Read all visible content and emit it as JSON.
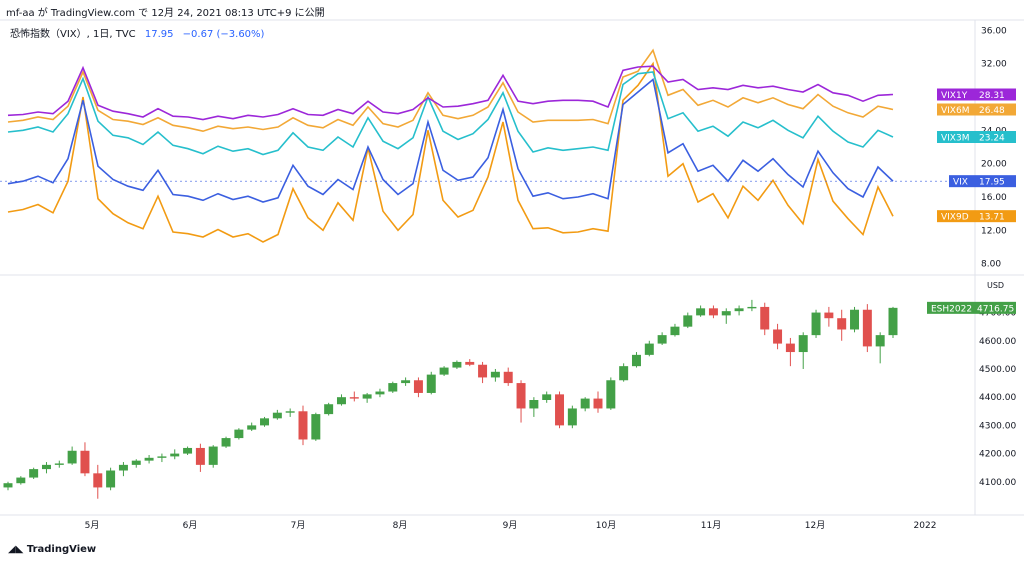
{
  "header": {
    "caption": "mf-aa が TradingView.com で 12月 24, 2021 08:13 UTC+9 に公開"
  },
  "legend": {
    "title": "恐怖指数（VIX）, 1日, TVC",
    "last": "17.95",
    "change": "−0.67 (−3.60%)"
  },
  "footer": {
    "logo": "TradingView"
  },
  "colors": {
    "VIX1Y": "#9c27d9",
    "VIX6M": "#f2a836",
    "VIX3M": "#26bfcc",
    "VIX": "#3b5fe0",
    "VIX9D": "#f29b13",
    "up": "#43a047",
    "down": "#e0504e"
  },
  "chart_data": [
    {
      "type": "line",
      "y_ticks": [
        "36.00",
        "32.00",
        "28.00",
        "24.00",
        "20.00",
        "16.00",
        "12.00",
        "8.00"
      ],
      "ylim": [
        7,
        37
      ],
      "x_labels": [
        "5月",
        "6月",
        "7月",
        "8月",
        "9月",
        "10月",
        "11月",
        "12月",
        "2022"
      ],
      "series": [
        {
          "name": "VIX1Y",
          "last": "28.31",
          "values": [
            25.8,
            25.9,
            26.2,
            26.0,
            27.5,
            31.5,
            27.0,
            26.3,
            26.0,
            25.6,
            26.6,
            25.7,
            25.6,
            25.3,
            25.7,
            25.4,
            25.8,
            25.6,
            25.9,
            26.6,
            25.9,
            25.8,
            26.5,
            26.0,
            27.5,
            26.2,
            26.0,
            26.5,
            27.9,
            26.8,
            26.9,
            27.2,
            27.6,
            30.6,
            27.5,
            27.2,
            27.5,
            27.6,
            27.6,
            27.5,
            26.8,
            31.2,
            31.6,
            31.7,
            29.8,
            30.1,
            28.9,
            29.1,
            28.9,
            29.4,
            29.1,
            29.3,
            28.9,
            28.6,
            29.5,
            28.5,
            28.2,
            27.5,
            28.2,
            28.3
          ]
        },
        {
          "name": "VIX6M",
          "last": "26.48",
          "values": [
            25.0,
            25.2,
            25.6,
            25.3,
            26.9,
            31.0,
            26.4,
            25.3,
            25.1,
            24.7,
            25.5,
            24.6,
            24.3,
            23.9,
            24.5,
            24.2,
            24.4,
            24.1,
            24.4,
            25.5,
            24.6,
            24.3,
            25.3,
            24.6,
            26.8,
            24.8,
            24.4,
            25.2,
            28.5,
            25.8,
            25.4,
            25.8,
            26.8,
            29.7,
            26.2,
            25.0,
            25.2,
            25.2,
            25.2,
            25.3,
            24.8,
            30.4,
            31.1,
            33.6,
            28.2,
            28.9,
            27.0,
            27.6,
            26.8,
            27.9,
            27.3,
            27.9,
            27.1,
            26.6,
            28.3,
            26.9,
            26.1,
            25.6,
            26.9,
            26.5
          ]
        },
        {
          "name": "VIX3M",
          "last": "23.24",
          "values": [
            23.8,
            24.0,
            24.4,
            23.8,
            26.0,
            30.2,
            25.1,
            23.4,
            23.1,
            22.3,
            23.8,
            22.2,
            21.8,
            21.2,
            22.1,
            21.5,
            21.8,
            21.1,
            21.6,
            23.7,
            22.0,
            21.6,
            23.2,
            22.0,
            25.5,
            22.7,
            21.8,
            23.1,
            28.0,
            23.9,
            22.9,
            23.6,
            25.3,
            28.5,
            23.9,
            21.4,
            21.9,
            21.6,
            21.8,
            22.0,
            21.6,
            29.5,
            30.8,
            31.0,
            25.4,
            26.1,
            23.9,
            24.5,
            23.3,
            25.0,
            24.3,
            25.2,
            24.0,
            23.1,
            25.7,
            23.9,
            22.6,
            22.0,
            24.0,
            23.2
          ]
        },
        {
          "name": "VIX",
          "last": "17.95",
          "values": [
            17.6,
            17.9,
            18.5,
            17.7,
            20.6,
            27.6,
            19.7,
            18.1,
            17.3,
            16.8,
            19.2,
            16.3,
            16.1,
            15.6,
            16.4,
            15.7,
            16.1,
            15.4,
            15.9,
            19.8,
            17.3,
            16.3,
            18.1,
            16.9,
            22.0,
            18.1,
            16.3,
            17.6,
            25.0,
            19.2,
            18.0,
            18.4,
            20.7,
            26.5,
            19.4,
            16.1,
            16.5,
            15.8,
            16.0,
            16.4,
            15.8,
            27.1,
            28.6,
            30.1,
            21.3,
            22.4,
            19.1,
            19.8,
            17.9,
            20.4,
            19.1,
            20.6,
            18.7,
            17.2,
            21.5,
            18.9,
            17.0,
            16.0,
            19.6,
            17.9
          ]
        },
        {
          "name": "VIX9D",
          "last": "13.71",
          "values": [
            14.2,
            14.5,
            15.1,
            14.1,
            17.9,
            28.0,
            15.8,
            14.0,
            12.9,
            12.2,
            16.1,
            11.8,
            11.6,
            11.2,
            12.1,
            11.2,
            11.6,
            10.6,
            11.5,
            17.0,
            13.5,
            12.0,
            15.3,
            13.2,
            21.9,
            14.3,
            12.0,
            13.9,
            24.0,
            15.6,
            13.6,
            14.4,
            18.4,
            25.0,
            15.6,
            12.2,
            12.3,
            11.7,
            11.8,
            12.2,
            11.9,
            27.6,
            29.4,
            32.0,
            18.5,
            20.0,
            15.4,
            16.4,
            13.5,
            17.3,
            15.6,
            18.0,
            15.0,
            12.8,
            20.5,
            15.5,
            13.4,
            11.5,
            17.2,
            13.7
          ]
        }
      ]
    },
    {
      "type": "candlestick",
      "name": "ESH2022",
      "last": "4716.75",
      "unit": "USD",
      "y_ticks": [
        "4700.00",
        "4600.00",
        "4500.00",
        "4400.00",
        "4300.00",
        "4200.00",
        "4100.00"
      ],
      "ylim": [
        4000,
        4780
      ],
      "x_labels": [
        "5月",
        "6月",
        "7月",
        "8月",
        "9月",
        "10月",
        "11月",
        "12月",
        "2022"
      ],
      "ohlc": [
        [
          4080,
          4100,
          4070,
          4095
        ],
        [
          4095,
          4120,
          4090,
          4115
        ],
        [
          4115,
          4150,
          4110,
          4145
        ],
        [
          4145,
          4170,
          4130,
          4160
        ],
        [
          4160,
          4175,
          4150,
          4165
        ],
        [
          4165,
          4225,
          4160,
          4210
        ],
        [
          4210,
          4240,
          4120,
          4130
        ],
        [
          4130,
          4160,
          4040,
          4080
        ],
        [
          4080,
          4150,
          4070,
          4140
        ],
        [
          4140,
          4170,
          4120,
          4160
        ],
        [
          4160,
          4180,
          4150,
          4175
        ],
        [
          4175,
          4195,
          4165,
          4185
        ],
        [
          4185,
          4200,
          4170,
          4190
        ],
        [
          4190,
          4215,
          4180,
          4200
        ],
        [
          4200,
          4225,
          4195,
          4220
        ],
        [
          4220,
          4235,
          4135,
          4160
        ],
        [
          4160,
          4230,
          4150,
          4225
        ],
        [
          4225,
          4260,
          4220,
          4255
        ],
        [
          4255,
          4290,
          4250,
          4285
        ],
        [
          4285,
          4310,
          4280,
          4300
        ],
        [
          4300,
          4330,
          4295,
          4325
        ],
        [
          4325,
          4355,
          4320,
          4345
        ],
        [
          4345,
          4360,
          4330,
          4350
        ],
        [
          4350,
          4370,
          4230,
          4250
        ],
        [
          4250,
          4345,
          4245,
          4340
        ],
        [
          4340,
          4380,
          4335,
          4375
        ],
        [
          4375,
          4410,
          4370,
          4400
        ],
        [
          4400,
          4420,
          4385,
          4395
        ],
        [
          4395,
          4415,
          4380,
          4410
        ],
        [
          4410,
          4430,
          4400,
          4420
        ],
        [
          4420,
          4455,
          4415,
          4450
        ],
        [
          4450,
          4470,
          4440,
          4460
        ],
        [
          4460,
          4470,
          4400,
          4415
        ],
        [
          4415,
          4490,
          4410,
          4480
        ],
        [
          4480,
          4510,
          4475,
          4505
        ],
        [
          4505,
          4530,
          4500,
          4525
        ],
        [
          4525,
          4535,
          4510,
          4515
        ],
        [
          4515,
          4525,
          4450,
          4470
        ],
        [
          4470,
          4500,
          4455,
          4490
        ],
        [
          4490,
          4505,
          4440,
          4450
        ],
        [
          4450,
          4460,
          4310,
          4360
        ],
        [
          4360,
          4400,
          4330,
          4390
        ],
        [
          4390,
          4420,
          4380,
          4410
        ],
        [
          4410,
          4420,
          4290,
          4300
        ],
        [
          4300,
          4370,
          4290,
          4360
        ],
        [
          4360,
          4400,
          4350,
          4395
        ],
        [
          4395,
          4420,
          4345,
          4360
        ],
        [
          4360,
          4470,
          4355,
          4460
        ],
        [
          4460,
          4520,
          4455,
          4510
        ],
        [
          4510,
          4560,
          4505,
          4550
        ],
        [
          4550,
          4600,
          4545,
          4590
        ],
        [
          4590,
          4630,
          4585,
          4620
        ],
        [
          4620,
          4660,
          4615,
          4650
        ],
        [
          4650,
          4700,
          4645,
          4690
        ],
        [
          4690,
          4725,
          4685,
          4715
        ],
        [
          4715,
          4725,
          4680,
          4690
        ],
        [
          4690,
          4715,
          4660,
          4705
        ],
        [
          4705,
          4725,
          4690,
          4715
        ],
        [
          4715,
          4745,
          4705,
          4720
        ],
        [
          4720,
          4735,
          4620,
          4640
        ],
        [
          4640,
          4660,
          4570,
          4590
        ],
        [
          4590,
          4610,
          4510,
          4560
        ],
        [
          4560,
          4630,
          4500,
          4620
        ],
        [
          4620,
          4710,
          4610,
          4700
        ],
        [
          4700,
          4720,
          4650,
          4680
        ],
        [
          4680,
          4710,
          4600,
          4640
        ],
        [
          4640,
          4720,
          4630,
          4710
        ],
        [
          4710,
          4730,
          4560,
          4580
        ],
        [
          4580,
          4630,
          4520,
          4620
        ],
        [
          4620,
          4720,
          4610,
          4716.75
        ]
      ]
    }
  ]
}
